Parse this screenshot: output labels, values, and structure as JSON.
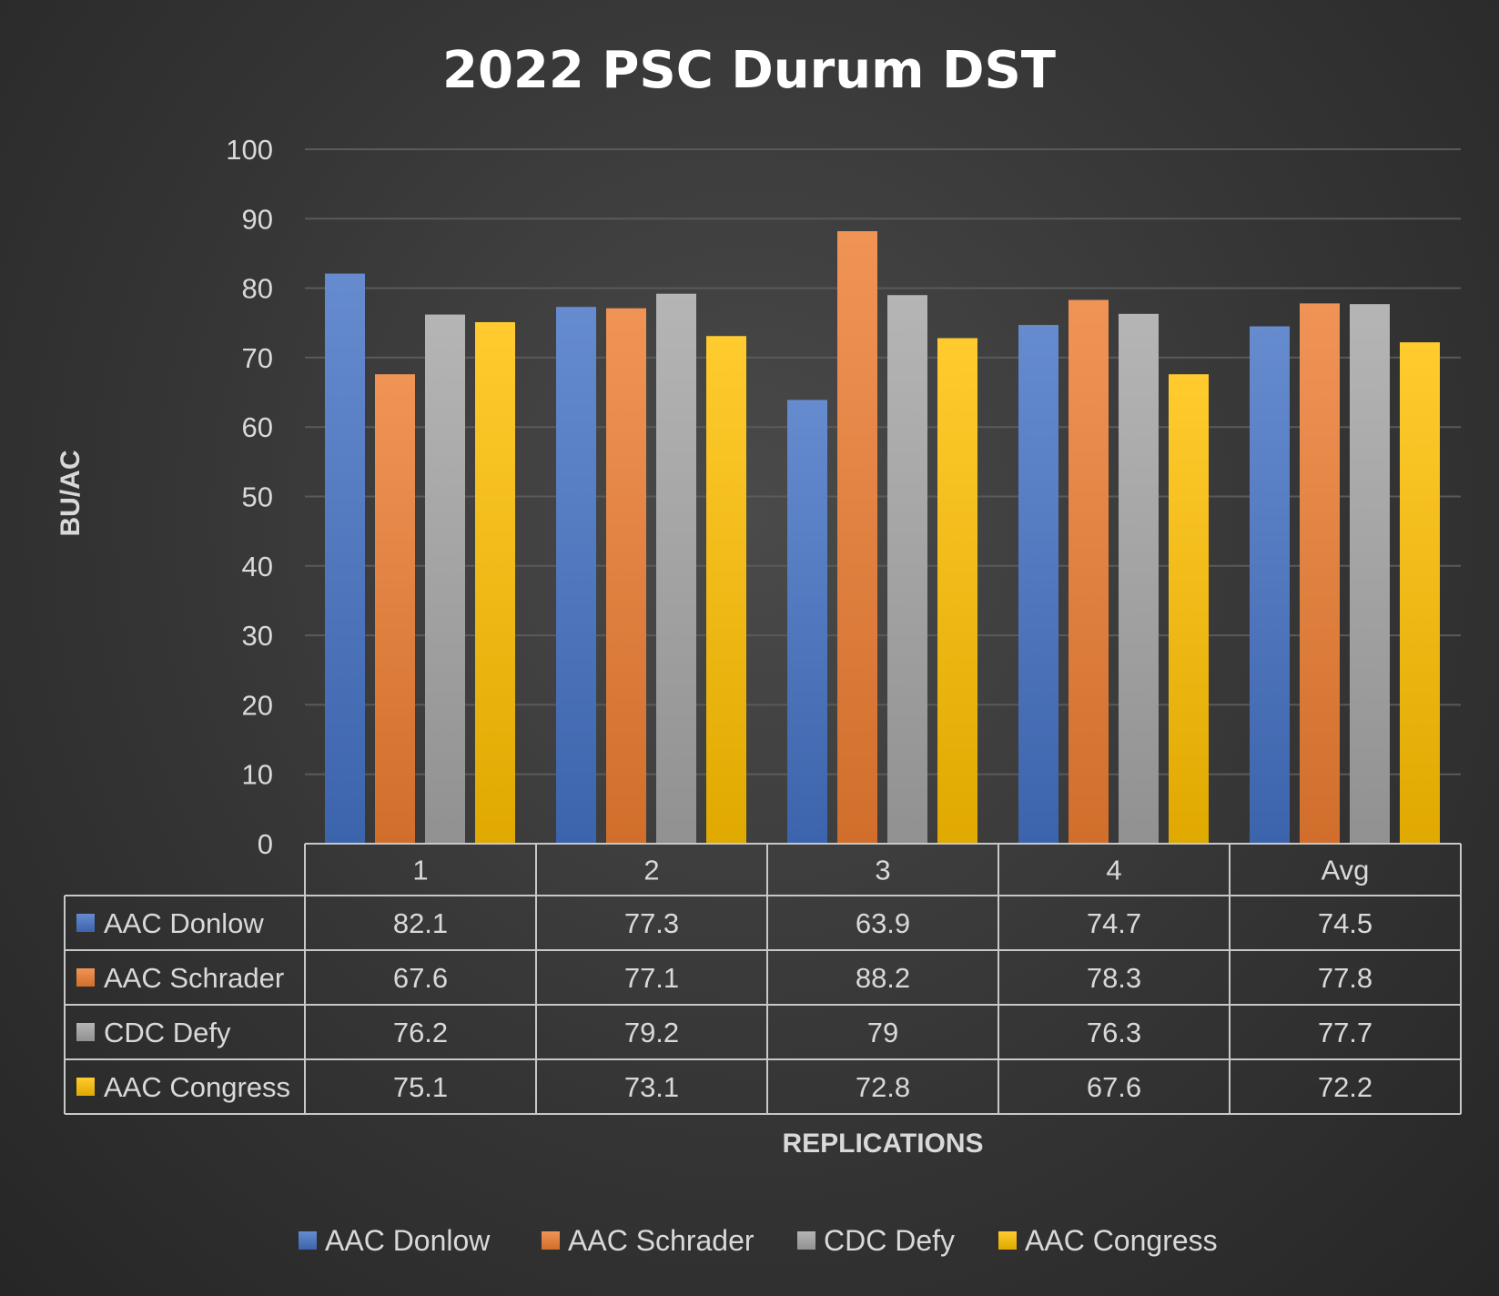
{
  "chart_data": {
    "type": "bar",
    "title": "2022 PSC Durum DST",
    "xlabel": "REPLICATIONS",
    "ylabel": "BU/AC",
    "ylim": [
      0,
      100
    ],
    "yticks": [
      0,
      10,
      20,
      30,
      40,
      50,
      60,
      70,
      80,
      90,
      100
    ],
    "grid": true,
    "legend_position": "bottom",
    "categories": [
      "1",
      "2",
      "3",
      "4",
      "Avg"
    ],
    "series": [
      {
        "name": "AAC Donlow",
        "color": "#4472c4",
        "values": [
          82.1,
          77.3,
          63.9,
          74.7,
          74.5
        ],
        "labels": [
          "82.1",
          "77.3",
          "63.9",
          "74.7",
          "74.5"
        ]
      },
      {
        "name": "AAC Schrader",
        "color": "#ed7d31",
        "values": [
          67.6,
          77.1,
          88.2,
          78.3,
          77.8
        ],
        "labels": [
          "67.6",
          "77.1",
          "88.2",
          "78.3",
          "77.8"
        ]
      },
      {
        "name": "CDC Defy",
        "color": "#a5a5a5",
        "values": [
          76.2,
          79.2,
          79,
          76.3,
          77.7
        ],
        "labels": [
          "76.2",
          "79.2",
          "79",
          "76.3",
          "77.7"
        ]
      },
      {
        "name": "AAC Congress",
        "color": "#ffc000",
        "values": [
          75.1,
          73.1,
          72.8,
          67.6,
          72.2
        ],
        "labels": [
          "75.1",
          "73.1",
          "72.8",
          "67.6",
          "72.2"
        ]
      }
    ]
  }
}
